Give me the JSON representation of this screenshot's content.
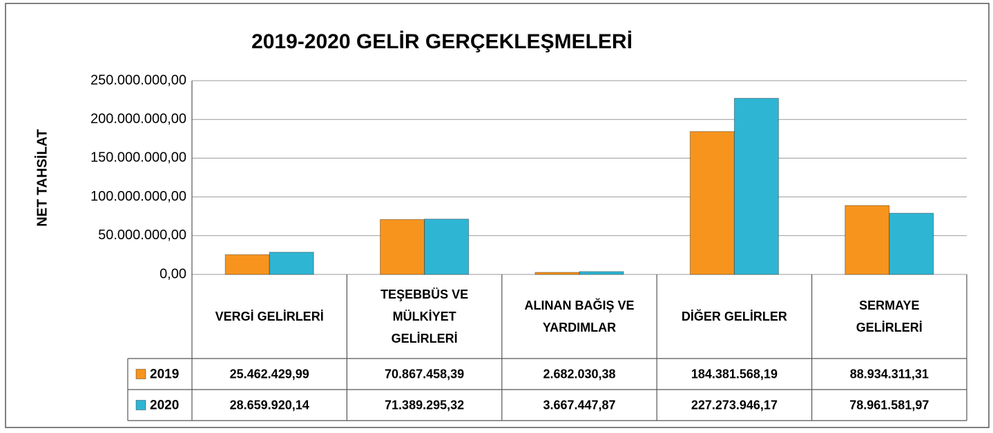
{
  "chart_data": {
    "type": "bar",
    "title": "2019-2020 GELİR GERÇEKLEŞMELERİ",
    "y_label": "NET TAHSİLAT",
    "categories": [
      "VERGİ GELİRLERİ",
      "TEŞEBBÜS VE MÜLKİYET GELİRLERİ",
      "ALINAN BAĞIŞ VE YARDIMLAR",
      "DİĞER GELİRLER",
      "SERMAYE GELİRLERİ"
    ],
    "series": [
      {
        "name": "2019",
        "color": "#f7941d",
        "values": [
          25462429.99,
          70867458.39,
          2682030.38,
          184381568.19,
          88934311.31
        ],
        "value_labels": [
          "25.462.429,99",
          "70.867.458,39",
          "2.682.030,38",
          "184.381.568,19",
          "88.934.311,31"
        ]
      },
      {
        "name": "2020",
        "color": "#2fb5d4",
        "values": [
          28659920.14,
          71389295.32,
          3667447.87,
          227273946.17,
          78961581.97
        ],
        "value_labels": [
          "28.659.920,14",
          "71.389.295,32",
          "3.667.447,87",
          "227.273.946,17",
          "78.961.581,97"
        ]
      }
    ],
    "ylim": [
      0,
      250000000
    ],
    "yticks": [
      {
        "value": 0,
        "label": "0,00"
      },
      {
        "value": 50000000,
        "label": "50.000.000,00"
      },
      {
        "value": 100000000,
        "label": "100.000.000,00"
      },
      {
        "value": 150000000,
        "label": "150.000.000,00"
      },
      {
        "value": 200000000,
        "label": "200.000.000,00"
      },
      {
        "value": 250000000,
        "label": "250.000.000,00"
      }
    ],
    "grid": true
  }
}
